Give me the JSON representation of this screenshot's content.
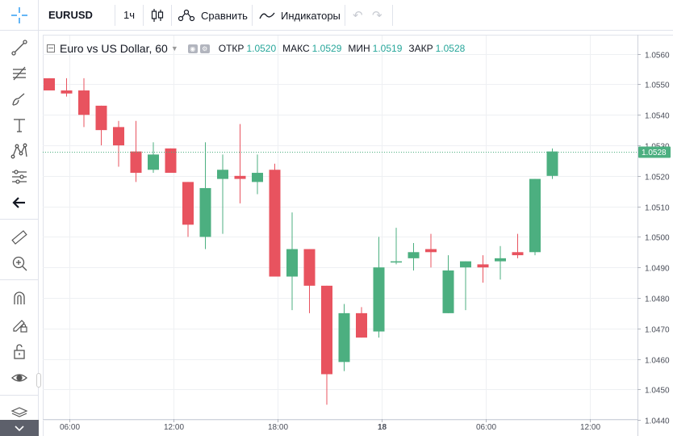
{
  "toolbar": {
    "symbol": "EURUSD",
    "interval": "1ч",
    "compare_label": "Сравнить",
    "indicators_label": "Индикаторы"
  },
  "legend": {
    "title": "Euro vs US Dollar, 60",
    "open_label": "ОТКР",
    "open_value": "1.0520",
    "high_label": "МАКС",
    "high_value": "1.0529",
    "low_label": "МИН",
    "low_value": "1.0519",
    "close_label": "ЗАКР",
    "close_value": "1.0528"
  },
  "left_tools": [
    "crosshair-icon",
    "trendline-icon",
    "fib-icon",
    "brush-icon",
    "text-icon",
    "pattern-icon",
    "forecast-icon",
    "back-arrow-icon",
    "ruler-icon",
    "zoom-icon",
    "magnet-icon",
    "lock-drawings-icon",
    "unlock-icon",
    "eye-icon",
    "layers-icon"
  ],
  "colors": {
    "up": "#4caf80",
    "down": "#e8535f",
    "last_price": "#4caf80",
    "grid": "#eef0f3"
  },
  "chart_data": {
    "type": "candlestick",
    "title": "Euro vs US Dollar, 60",
    "y_ticks": [
      "1.0560",
      "1.0550",
      "1.0540",
      "1.0530",
      "1.0520",
      "1.0510",
      "1.0500",
      "1.0490",
      "1.0480",
      "1.0470",
      "1.0460",
      "1.0450",
      "1.0440"
    ],
    "ylim": [
      1.04403,
      1.0566
    ],
    "x_ticks": [
      {
        "label": "06:00",
        "index": 1.5
      },
      {
        "label": "12:00",
        "index": 7.5
      },
      {
        "label": "18:00",
        "index": 13.5
      },
      {
        "label": "18",
        "index": 19.5,
        "bold": true
      },
      {
        "label": "06:00",
        "index": 25.5
      },
      {
        "label": "12:00",
        "index": 31.5
      }
    ],
    "last_price": "1.0528",
    "candles": [
      {
        "o": 1.0552,
        "h": 1.0552,
        "l": 1.0548,
        "c": 1.0548
      },
      {
        "o": 1.0548,
        "h": 1.0552,
        "l": 1.0546,
        "c": 1.0547
      },
      {
        "o": 1.0548,
        "h": 1.0552,
        "l": 1.0536,
        "c": 1.054
      },
      {
        "o": 1.0543,
        "h": 1.0543,
        "l": 1.053,
        "c": 1.0535
      },
      {
        "o": 1.0536,
        "h": 1.0538,
        "l": 1.0523,
        "c": 1.053
      },
      {
        "o": 1.0528,
        "h": 1.0538,
        "l": 1.0518,
        "c": 1.0521
      },
      {
        "o": 1.0522,
        "h": 1.0531,
        "l": 1.0521,
        "c": 1.0527
      },
      {
        "o": 1.0529,
        "h": 1.0529,
        "l": 1.0521,
        "c": 1.0521
      },
      {
        "o": 1.0518,
        "h": 1.0518,
        "l": 1.05,
        "c": 1.0504
      },
      {
        "o": 1.05,
        "h": 1.0531,
        "l": 1.0496,
        "c": 1.0516
      },
      {
        "o": 1.0519,
        "h": 1.0527,
        "l": 1.0501,
        "c": 1.0522
      },
      {
        "o": 1.052,
        "h": 1.0537,
        "l": 1.0511,
        "c": 1.0519
      },
      {
        "o": 1.0518,
        "h": 1.0527,
        "l": 1.0514,
        "c": 1.0521
      },
      {
        "o": 1.0522,
        "h": 1.0524,
        "l": 1.0487,
        "c": 1.0487
      },
      {
        "o": 1.0487,
        "h": 1.0508,
        "l": 1.0476,
        "c": 1.0496
      },
      {
        "o": 1.0496,
        "h": 1.0496,
        "l": 1.0475,
        "c": 1.0484
      },
      {
        "o": 1.0484,
        "h": 1.0484,
        "l": 1.0445,
        "c": 1.0455
      },
      {
        "o": 1.0459,
        "h": 1.0478,
        "l": 1.0456,
        "c": 1.0475
      },
      {
        "o": 1.0475,
        "h": 1.0477,
        "l": 1.0467,
        "c": 1.0467
      },
      {
        "o": 1.0469,
        "h": 1.05,
        "l": 1.0467,
        "c": 1.049
      },
      {
        "o": 1.0492,
        "h": 1.0503,
        "l": 1.0491,
        "c": 1.0492
      },
      {
        "o": 1.0493,
        "h": 1.0498,
        "l": 1.0489,
        "c": 1.0495
      },
      {
        "o": 1.0496,
        "h": 1.0501,
        "l": 1.049,
        "c": 1.0495
      },
      {
        "o": 1.0475,
        "h": 1.0494,
        "l": 1.0475,
        "c": 1.0489
      },
      {
        "o": 1.049,
        "h": 1.0492,
        "l": 1.0476,
        "c": 1.0492
      },
      {
        "o": 1.0491,
        "h": 1.0494,
        "l": 1.0485,
        "c": 1.049
      },
      {
        "o": 1.0492,
        "h": 1.0497,
        "l": 1.0486,
        "c": 1.0493
      },
      {
        "o": 1.0495,
        "h": 1.0501,
        "l": 1.0493,
        "c": 1.0494
      },
      {
        "o": 1.0495,
        "h": 1.0519,
        "l": 1.0494,
        "c": 1.0519
      },
      {
        "o": 1.052,
        "h": 1.0529,
        "l": 1.0519,
        "c": 1.0528
      }
    ]
  }
}
